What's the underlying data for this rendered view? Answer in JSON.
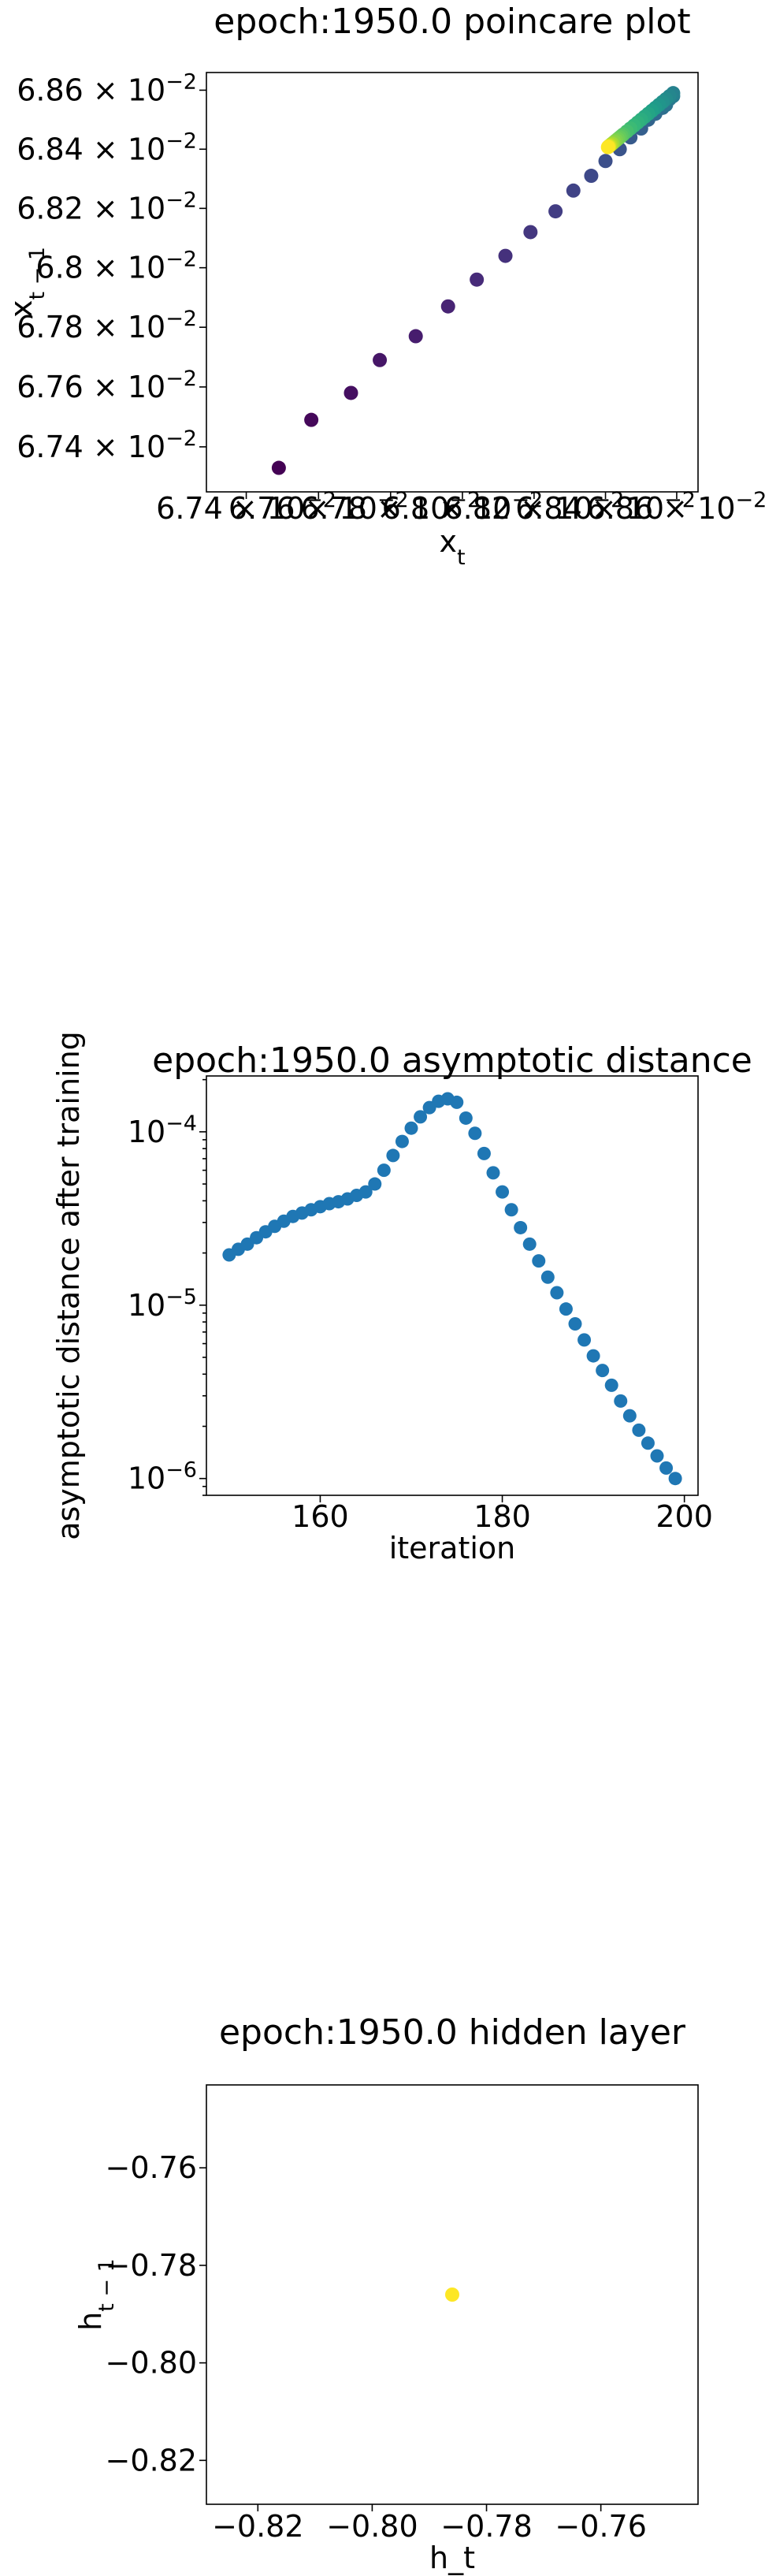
{
  "chart_data": [
    {
      "type": "scatter",
      "title": "epoch:1950.0 poincare plot",
      "xlabel": "x_t",
      "ylabel": "x_t-1",
      "xlim": [
        0.06729,
        0.06866
      ],
      "ylim": [
        0.06725,
        0.06866
      ],
      "x_scale": "log",
      "y_scale": "log",
      "grid": false,
      "colormap": "viridis",
      "x_ticks": [
        {
          "value": 0.0674,
          "label": "6.74 × 10^-2"
        },
        {
          "value": 0.0676,
          "label": "6.76 × 10^-2"
        },
        {
          "value": 0.0678,
          "label": "6.78 × 10^-2"
        },
        {
          "value": 0.068,
          "label": "6.8 × 10^-2"
        },
        {
          "value": 0.0682,
          "label": "6.82 × 10^-2"
        },
        {
          "value": 0.0684,
          "label": "6.84 × 10^-2"
        },
        {
          "value": 0.0686,
          "label": "6.86 × 10^-2"
        }
      ],
      "y_ticks": [
        {
          "value": 0.0674,
          "label": "6.74 × 10^-2"
        },
        {
          "value": 0.0676,
          "label": "6.76 × 10^-2"
        },
        {
          "value": 0.0678,
          "label": "6.78 × 10^-2"
        },
        {
          "value": 0.068,
          "label": "6.8 × 10^-2"
        },
        {
          "value": 0.0682,
          "label": "6.82 × 10^-2"
        },
        {
          "value": 0.0684,
          "label": "6.84 × 10^-2"
        },
        {
          "value": 0.0686,
          "label": "6.86 × 10^-2"
        }
      ],
      "points": [
        {
          "x": 0.06749,
          "y": 0.06733,
          "c": 0.0
        },
        {
          "x": 0.06758,
          "y": 0.06749,
          "c": 0.02
        },
        {
          "x": 0.06769,
          "y": 0.06758,
          "c": 0.04
        },
        {
          "x": 0.06777,
          "y": 0.06769,
          "c": 0.06
        },
        {
          "x": 0.06787,
          "y": 0.06777,
          "c": 0.08
        },
        {
          "x": 0.06796,
          "y": 0.06787,
          "c": 0.1
        },
        {
          "x": 0.06804,
          "y": 0.06796,
          "c": 0.12
        },
        {
          "x": 0.06812,
          "y": 0.06804,
          "c": 0.14
        },
        {
          "x": 0.06819,
          "y": 0.06812,
          "c": 0.16
        },
        {
          "x": 0.06826,
          "y": 0.06819,
          "c": 0.18
        },
        {
          "x": 0.06831,
          "y": 0.06826,
          "c": 0.2
        },
        {
          "x": 0.06836,
          "y": 0.06831,
          "c": 0.22
        },
        {
          "x": 0.0684,
          "y": 0.06836,
          "c": 0.24
        },
        {
          "x": 0.06844,
          "y": 0.0684,
          "c": 0.26
        },
        {
          "x": 0.06847,
          "y": 0.06844,
          "c": 0.28
        },
        {
          "x": 0.0685,
          "y": 0.06847,
          "c": 0.3
        },
        {
          "x": 0.06852,
          "y": 0.0685,
          "c": 0.32
        },
        {
          "x": 0.06854,
          "y": 0.06852,
          "c": 0.34
        },
        {
          "x": 0.06856,
          "y": 0.06854,
          "c": 0.36
        },
        {
          "x": 0.06857,
          "y": 0.06855,
          "c": 0.38
        },
        {
          "x": 0.06858,
          "y": 0.06857,
          "c": 0.4
        },
        {
          "x": 0.06859,
          "y": 0.06858,
          "c": 0.42
        },
        {
          "x": 0.06859,
          "y": 0.06859,
          "c": 0.44
        },
        {
          "x": 0.06858,
          "y": 0.06858,
          "c": 0.46
        },
        {
          "x": 0.06857,
          "y": 0.06857,
          "c": 0.48
        },
        {
          "x": 0.06856,
          "y": 0.06856,
          "c": 0.5
        },
        {
          "x": 0.06855,
          "y": 0.06855,
          "c": 0.52
        },
        {
          "x": 0.06854,
          "y": 0.06854,
          "c": 0.54
        },
        {
          "x": 0.06853,
          "y": 0.06853,
          "c": 0.56
        },
        {
          "x": 0.06852,
          "y": 0.06852,
          "c": 0.58
        },
        {
          "x": 0.06851,
          "y": 0.06851,
          "c": 0.6
        },
        {
          "x": 0.0685,
          "y": 0.0685,
          "c": 0.62
        },
        {
          "x": 0.06849,
          "y": 0.06849,
          "c": 0.64
        },
        {
          "x": 0.06848,
          "y": 0.06848,
          "c": 0.66
        },
        {
          "x": 0.06847,
          "y": 0.06847,
          "c": 0.68
        },
        {
          "x": 0.06846,
          "y": 0.06846,
          "c": 0.7
        },
        {
          "x": 0.06845,
          "y": 0.06845,
          "c": 0.72
        },
        {
          "x": 0.068445,
          "y": 0.068445,
          "c": 0.74
        },
        {
          "x": 0.06844,
          "y": 0.06844,
          "c": 0.76
        },
        {
          "x": 0.068435,
          "y": 0.068435,
          "c": 0.78
        },
        {
          "x": 0.06843,
          "y": 0.06843,
          "c": 0.8
        },
        {
          "x": 0.068425,
          "y": 0.068425,
          "c": 0.82
        },
        {
          "x": 0.06842,
          "y": 0.06842,
          "c": 0.84
        },
        {
          "x": 0.068418,
          "y": 0.068418,
          "c": 0.86
        },
        {
          "x": 0.068415,
          "y": 0.068415,
          "c": 0.88
        },
        {
          "x": 0.068413,
          "y": 0.068413,
          "c": 0.9
        },
        {
          "x": 0.068411,
          "y": 0.068411,
          "c": 0.92
        },
        {
          "x": 0.06841,
          "y": 0.06841,
          "c": 0.94
        },
        {
          "x": 0.068409,
          "y": 0.068409,
          "c": 0.96
        },
        {
          "x": 0.068408,
          "y": 0.068408,
          "c": 0.98
        },
        {
          "x": 0.068407,
          "y": 0.068407,
          "c": 1.0
        }
      ]
    },
    {
      "type": "scatter",
      "title": "epoch:1950.0 asymptotic distance",
      "xlabel": "iteration",
      "ylabel": "asymptotic distance after training",
      "xlim": [
        147.5,
        201.5
      ],
      "ylim": [
        8e-07,
        0.00021
      ],
      "y_scale": "log",
      "grid": false,
      "color": "#1f77b4",
      "x_ticks": [
        {
          "value": 160,
          "label": "160"
        },
        {
          "value": 180,
          "label": "180"
        },
        {
          "value": 200,
          "label": "200"
        }
      ],
      "y_ticks": [
        {
          "value": 1e-06,
          "label": "10^-6"
        },
        {
          "value": 1e-05,
          "label": "10^-5"
        },
        {
          "value": 0.0001,
          "label": "10^-4"
        }
      ],
      "x": [
        150,
        151,
        152,
        153,
        154,
        155,
        156,
        157,
        158,
        159,
        160,
        161,
        162,
        163,
        164,
        165,
        166,
        167,
        168,
        169,
        170,
        171,
        172,
        173,
        174,
        175,
        176,
        177,
        178,
        179,
        180,
        181,
        182,
        183,
        184,
        185,
        186,
        187,
        188,
        189,
        190,
        191,
        192,
        193,
        194,
        195,
        196,
        197,
        198,
        199
      ],
      "y": [
        1.95e-05,
        2.1e-05,
        2.25e-05,
        2.45e-05,
        2.65e-05,
        2.85e-05,
        3.05e-05,
        3.25e-05,
        3.4e-05,
        3.55e-05,
        3.7e-05,
        3.85e-05,
        3.95e-05,
        4.1e-05,
        4.3e-05,
        4.5e-05,
        5e-05,
        6e-05,
        7.3e-05,
        8.8e-05,
        0.000105,
        0.000122,
        0.000138,
        0.00015,
        0.000155,
        0.000148,
        0.00012,
        9.8e-05,
        7.5e-05,
        5.8e-05,
        4.5e-05,
        3.55e-05,
        2.8e-05,
        2.25e-05,
        1.8e-05,
        1.45e-05,
        1.18e-05,
        9.5e-06,
        7.8e-06,
        6.3e-06,
        5.1e-06,
        4.2e-06,
        3.45e-06,
        2.8e-06,
        2.3e-06,
        1.9e-06,
        1.6e-06,
        1.35e-06,
        1.15e-06,
        1e-06
      ]
    },
    {
      "type": "scatter",
      "title": "epoch:1950.0 hidden layer",
      "xlabel": "h_t",
      "ylabel": "h_t-1",
      "xlim": [
        -0.829,
        -0.743
      ],
      "ylim": [
        -0.829,
        -0.743
      ],
      "grid": false,
      "x_ticks": [
        {
          "value": -0.82,
          "label": "−0.82"
        },
        {
          "value": -0.8,
          "label": "−0.80"
        },
        {
          "value": -0.78,
          "label": "−0.78"
        },
        {
          "value": -0.76,
          "label": "−0.76"
        }
      ],
      "y_ticks": [
        {
          "value": -0.76,
          "label": "−0.76"
        },
        {
          "value": -0.78,
          "label": "−0.78"
        },
        {
          "value": -0.8,
          "label": "−0.80"
        },
        {
          "value": -0.82,
          "label": "−0.82"
        }
      ],
      "points": [
        {
          "x": -0.786,
          "y": -0.786,
          "color": "#fde725"
        }
      ]
    }
  ]
}
